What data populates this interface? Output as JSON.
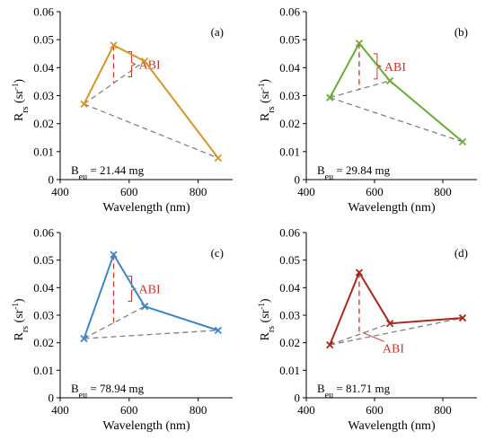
{
  "chart_data": [
    {
      "type": "line",
      "panel_label": "(a)",
      "color": "#d4962a",
      "xlabel": "Wavelength (nm)",
      "ylabel_main": "R",
      "ylabel_sub": "rs",
      "ylabel_unit_open": " (sr",
      "ylabel_unit_sup": "-1",
      "ylabel_unit_close": ")",
      "xlim": [
        400,
        900
      ],
      "ylim": [
        0,
        0.06
      ],
      "xticks": [
        "400",
        "600",
        "800"
      ],
      "yticks": [
        "0",
        "0.01",
        "0.02",
        "0.03",
        "0.04",
        "0.05",
        "0.06"
      ],
      "series": [
        {
          "x": [
            469,
            555,
            645,
            858
          ],
          "values": [
            0.027,
            0.048,
            0.0423,
            0.0077
          ]
        }
      ],
      "abi_label": "ABI",
      "annotation_main": "B",
      "annotation_sub": "eu",
      "annotation_value": " = 21.44 mg",
      "grid": false
    },
    {
      "type": "line",
      "panel_label": "(b)",
      "color": "#6aaa3a",
      "xlabel": "Wavelength (nm)",
      "ylabel_main": "R",
      "ylabel_sub": "rs",
      "ylabel_unit_open": " (sr",
      "ylabel_unit_sup": "-1",
      "ylabel_unit_close": ")",
      "xlim": [
        400,
        900
      ],
      "ylim": [
        0,
        0.06
      ],
      "xticks": [
        "400",
        "600",
        "800"
      ],
      "yticks": [
        "0",
        "0.01",
        "0.02",
        "0.03",
        "0.04",
        "0.05",
        "0.06"
      ],
      "series": [
        {
          "x": [
            469,
            555,
            645,
            858
          ],
          "values": [
            0.0293,
            0.0487,
            0.0353,
            0.0135
          ]
        }
      ],
      "abi_label": "ABI",
      "annotation_main": "B",
      "annotation_sub": "eu",
      "annotation_value": " = 29.84 mg",
      "grid": false
    },
    {
      "type": "line",
      "panel_label": "(c)",
      "color": "#3d86c6",
      "xlabel": "Wavelength (nm)",
      "ylabel_main": "R",
      "ylabel_sub": "rs",
      "ylabel_unit_open": " (sr",
      "ylabel_unit_sup": "-1",
      "ylabel_unit_close": ")",
      "xlim": [
        400,
        900
      ],
      "ylim": [
        0,
        0.06
      ],
      "xticks": [
        "400",
        "600",
        "800"
      ],
      "yticks": [
        "0",
        "0.01",
        "0.02",
        "0.03",
        "0.04",
        "0.05",
        "0.06"
      ],
      "series": [
        {
          "x": [
            469,
            555,
            645,
            858
          ],
          "values": [
            0.0215,
            0.052,
            0.0332,
            0.0245
          ]
        }
      ],
      "abi_label": "ABI",
      "annotation_main": "B",
      "annotation_sub": "eu",
      "annotation_value": " = 78.94 mg",
      "grid": false
    },
    {
      "type": "line",
      "panel_label": "(d)",
      "color": "#a32a1c",
      "xlabel": "Wavelength (nm)",
      "ylabel_main": "R",
      "ylabel_sub": "rs",
      "ylabel_unit_open": " (sr",
      "ylabel_unit_sup": "-1",
      "ylabel_unit_close": ")",
      "xlim": [
        400,
        900
      ],
      "ylim": [
        0,
        0.06
      ],
      "xticks": [
        "400",
        "600",
        "800"
      ],
      "yticks": [
        "0",
        "0.01",
        "0.02",
        "0.03",
        "0.04",
        "0.05",
        "0.06"
      ],
      "series": [
        {
          "x": [
            469,
            555,
            645,
            858
          ],
          "values": [
            0.0192,
            0.0455,
            0.027,
            0.029
          ]
        }
      ],
      "abi_label": "ABI",
      "annotation_main": "B",
      "annotation_sub": "eu",
      "annotation_value": " = 81.71 mg",
      "grid": false
    }
  ],
  "colors": {
    "baseline_dash": "#808080",
    "abi_marker": "#c0392b",
    "axis": "#000000"
  }
}
